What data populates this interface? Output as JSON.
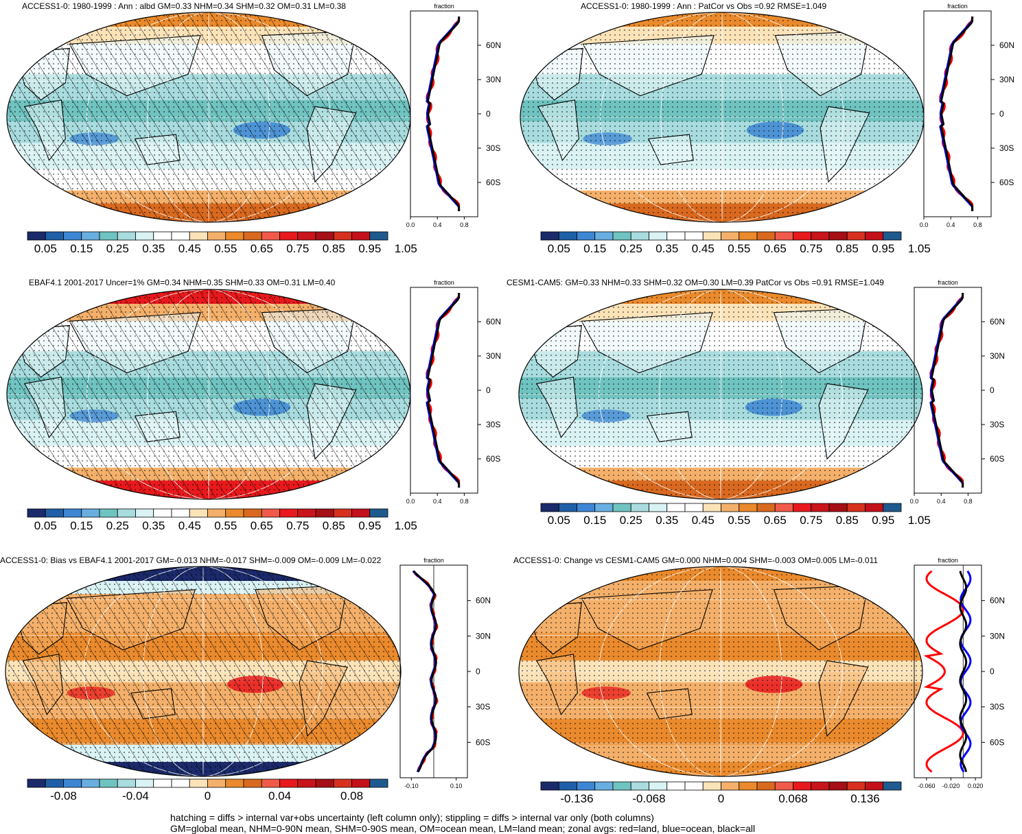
{
  "palettes": {
    "abs": [
      "#1b2a6b",
      "#1f5fa8",
      "#3d86d4",
      "#69aee0",
      "#6fc3c0",
      "#a8dcde",
      "#d9f2f4",
      "#ffffff",
      "#ffffff",
      "#fbe3b8",
      "#f4b06a",
      "#ea8a2c",
      "#d9691f",
      "#f15a4a",
      "#e8191c",
      "#c8141a",
      "#a50f15",
      "#d7301f",
      "#c4101a",
      "#1f5a8f"
    ],
    "diff": [
      "#1b2a6b",
      "#1f5fa8",
      "#3d86d4",
      "#69aee0",
      "#6fc3c0",
      "#a8dcde",
      "#d9f2f4",
      "#ffffff",
      "#ffffff",
      "#fbe3b8",
      "#f4b06a",
      "#ea8a2c",
      "#d9691f",
      "#f15a4a",
      "#e8191c",
      "#c8141a",
      "#a50f15",
      "#d7301f",
      "#c4101a",
      "#1f5a8f"
    ]
  },
  "panels": [
    {
      "title": "ACCESS1-0: 1980-1999 : Ann : albd GM=0.33 NHM=0.34 SHM=0.32 OM=0.31 LM=0.38",
      "kind": "abs",
      "hatch": true,
      "stipple": true,
      "colorbar_labels": [
        "0.05",
        "0.15",
        "0.25",
        "0.35",
        "0.45",
        "0.55",
        "0.65",
        "0.75",
        "0.85",
        "0.95",
        "1.05"
      ],
      "zonal": {
        "xlabel": "fraction",
        "xticks": [
          "0.0",
          "0.4",
          "0.8"
        ],
        "xlim": [
          0.0,
          1.0
        ],
        "ylabels": [
          "60N",
          "30N",
          "0",
          "30S",
          "60S"
        ],
        "series": {
          "land": "#ff0000",
          "ocean": "#0000ff",
          "all": "#000000"
        }
      }
    },
    {
      "title": "ACCESS1-0: 1980-1999 : Ann : PatCor vs Obs =0.92 RMSE=1.049",
      "kind": "abs",
      "hatch": false,
      "stipple": true,
      "colorbar_labels": [
        "0.05",
        "0.15",
        "0.25",
        "0.35",
        "0.45",
        "0.55",
        "0.65",
        "0.75",
        "0.85",
        "0.95",
        "1.05"
      ],
      "zonal": {
        "xlabel": "fraction",
        "xticks": [
          "0.0",
          "0.4",
          "0.8"
        ],
        "xlim": [
          0.0,
          1.0
        ],
        "ylabels": [
          "60N",
          "30N",
          "0",
          "30S",
          "60S"
        ],
        "series": {
          "land": "#ff0000",
          "ocean": "#0000ff",
          "all": "#000000"
        }
      }
    },
    {
      "title": "EBAF4.1 2001-2017 Uncer=1% GM=0.34 NHM=0.35 SHM=0.33 OM=0.31 LM=0.40",
      "kind": "abs",
      "hatch": true,
      "stipple": true,
      "colorbar_labels": [
        "0.05",
        "0.15",
        "0.25",
        "0.35",
        "0.45",
        "0.55",
        "0.65",
        "0.75",
        "0.85",
        "0.95",
        "1.05"
      ],
      "zonal": {
        "xlabel": "fraction",
        "xticks": [
          "0.0",
          "0.4",
          "0.8"
        ],
        "xlim": [
          0.0,
          1.0
        ],
        "ylabels": [
          "60N",
          "30N",
          "0",
          "30S",
          "60S"
        ],
        "series": {
          "land": "#ff0000",
          "ocean": "#0000ff",
          "all": "#000000"
        }
      }
    },
    {
      "title": "CESM1-CAM5: GM=0.33 NHM=0.33 SHM=0.32 OM=0.30 LM=0.39 PatCor vs Obs =0.91 RMSE=1.049",
      "kind": "abs",
      "hatch": false,
      "stipple": true,
      "colorbar_labels": [
        "0.05",
        "0.15",
        "0.25",
        "0.35",
        "0.45",
        "0.55",
        "0.65",
        "0.75",
        "0.85",
        "0.95",
        "1.05"
      ],
      "zonal": {
        "xlabel": "fraction",
        "xticks": [
          "0.0",
          "0.4",
          "0.8"
        ],
        "xlim": [
          0.0,
          1.0
        ],
        "ylabels": [
          "60N",
          "30N",
          "0",
          "30S",
          "60S"
        ],
        "series": {
          "land": "#ff0000",
          "ocean": "#0000ff",
          "all": "#000000"
        }
      }
    },
    {
      "title": "ACCESS1-0: Bias vs EBAF4.1 2001-2017 GM=-0.013 NHM=-0.017 SHM=-0.009 OM=-0.009 LM=-0.022",
      "kind": "diff",
      "hatch": true,
      "stipple": true,
      "colorbar_labels": [
        "-0.08",
        "-0.04",
        "0",
        "0.04",
        "0.08"
      ],
      "zonal": {
        "xlabel": "fraction",
        "xticks": [
          "-0.10",
          "0.10"
        ],
        "xlim": [
          -0.15,
          0.15
        ],
        "ylabels": [
          "60N",
          "30N",
          "0",
          "30S",
          "60S"
        ],
        "series": {
          "land": "#ff0000",
          "ocean": "#0000ff",
          "all": "#000000"
        }
      }
    },
    {
      "title": "ACCESS1-0: Change vs CESM1-CAM5 GM=0.000 NHM=0.004 SHM=-0.003 OM=0.005 LM=-0.011",
      "kind": "diff",
      "hatch": false,
      "stipple": true,
      "colorbar_labels": [
        "-0.136",
        "-0.068",
        "0",
        "0.068",
        "0.136"
      ],
      "zonal": {
        "xlabel": "fraction",
        "xticks": [
          "-0.060",
          "-0.020",
          "0.020"
        ],
        "xlim": [
          -0.08,
          0.03
        ],
        "ylabels": [
          "60N",
          "30N",
          "0",
          "30S",
          "60S"
        ],
        "series": {
          "land": "#ff0000",
          "ocean": "#0000ff",
          "all": "#000000"
        }
      }
    }
  ],
  "footer": {
    "line1": "hatching = diffs > internal var+obs uncertainty (left column only); stippling = diffs > internal var only (both columns)",
    "line2": "GM=global mean, NHM=0-90N mean, SHM=0-90S mean, OM=ocean mean, LM=land mean; zonal avgs: red=land, blue=ocean, black=all"
  }
}
